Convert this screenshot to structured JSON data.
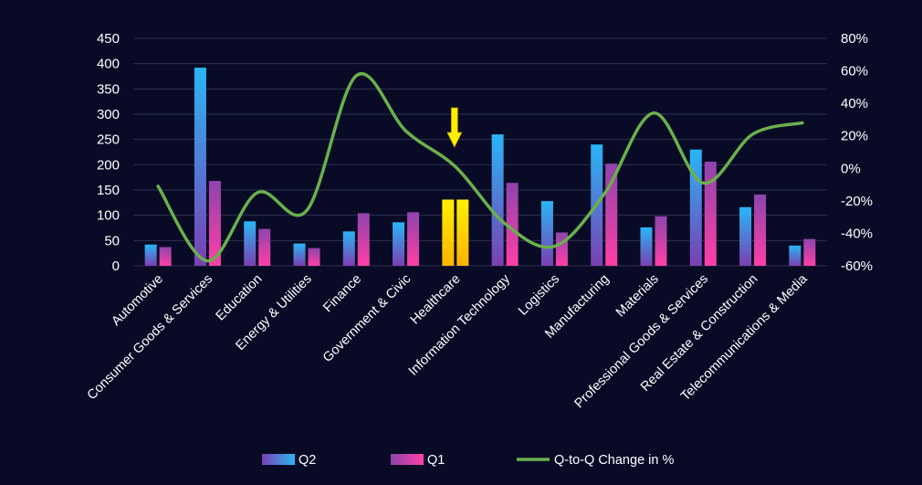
{
  "chart_data": {
    "type": "bar",
    "categories": [
      "Automotive",
      "Consumer Goods & Services",
      "Education",
      "Energy & Utilities",
      "Finance",
      "Government & Civic",
      "Healthcare",
      "Information Technology",
      "Logistics",
      "Manufacturing",
      "Materials",
      "Professional Goods & Services",
      "Real Estate & Construction",
      "Telecommunications & Media"
    ],
    "series": [
      {
        "name": "Q2",
        "kind": "bar",
        "axis": "left",
        "values": [
          42,
          392,
          88,
          44,
          68,
          86,
          131,
          260,
          128,
          240,
          76,
          230,
          116,
          40
        ]
      },
      {
        "name": "Q1",
        "kind": "bar",
        "axis": "left",
        "values": [
          37,
          168,
          73,
          35,
          104,
          106,
          131,
          164,
          66,
          202,
          98,
          206,
          141,
          53
        ]
      },
      {
        "name": "Q-to-Q Change in %",
        "kind": "line",
        "axis": "right",
        "values": [
          -11,
          -57,
          -15,
          -26,
          57,
          23,
          1,
          -34,
          -48,
          -16,
          34,
          -9,
          21,
          28
        ]
      }
    ],
    "ylim_left": [
      0,
      450
    ],
    "yticks_left": [
      "0",
      "50",
      "100",
      "150",
      "200",
      "250",
      "300",
      "350",
      "400",
      "450"
    ],
    "ylim_right": [
      -60,
      80
    ],
    "yticks_right": [
      "-60%",
      "-40%",
      "-20%",
      "0%",
      "20%",
      "40%",
      "60%",
      "80%"
    ],
    "highlight": {
      "category": "Healthcare",
      "marker": "down-arrow",
      "color": "#ffee00"
    },
    "legend_position": "bottom",
    "grid": true,
    "colors": {
      "background": "#090b26",
      "q2_top": "#29b6f6",
      "q2_bottom": "#7b3fb3",
      "q1_top": "#8e44ad",
      "q1_bottom": "#ff3fa6",
      "line": "#6ab04c",
      "highlight_top": "#ffef00",
      "highlight_bottom": "#ffb300"
    }
  }
}
